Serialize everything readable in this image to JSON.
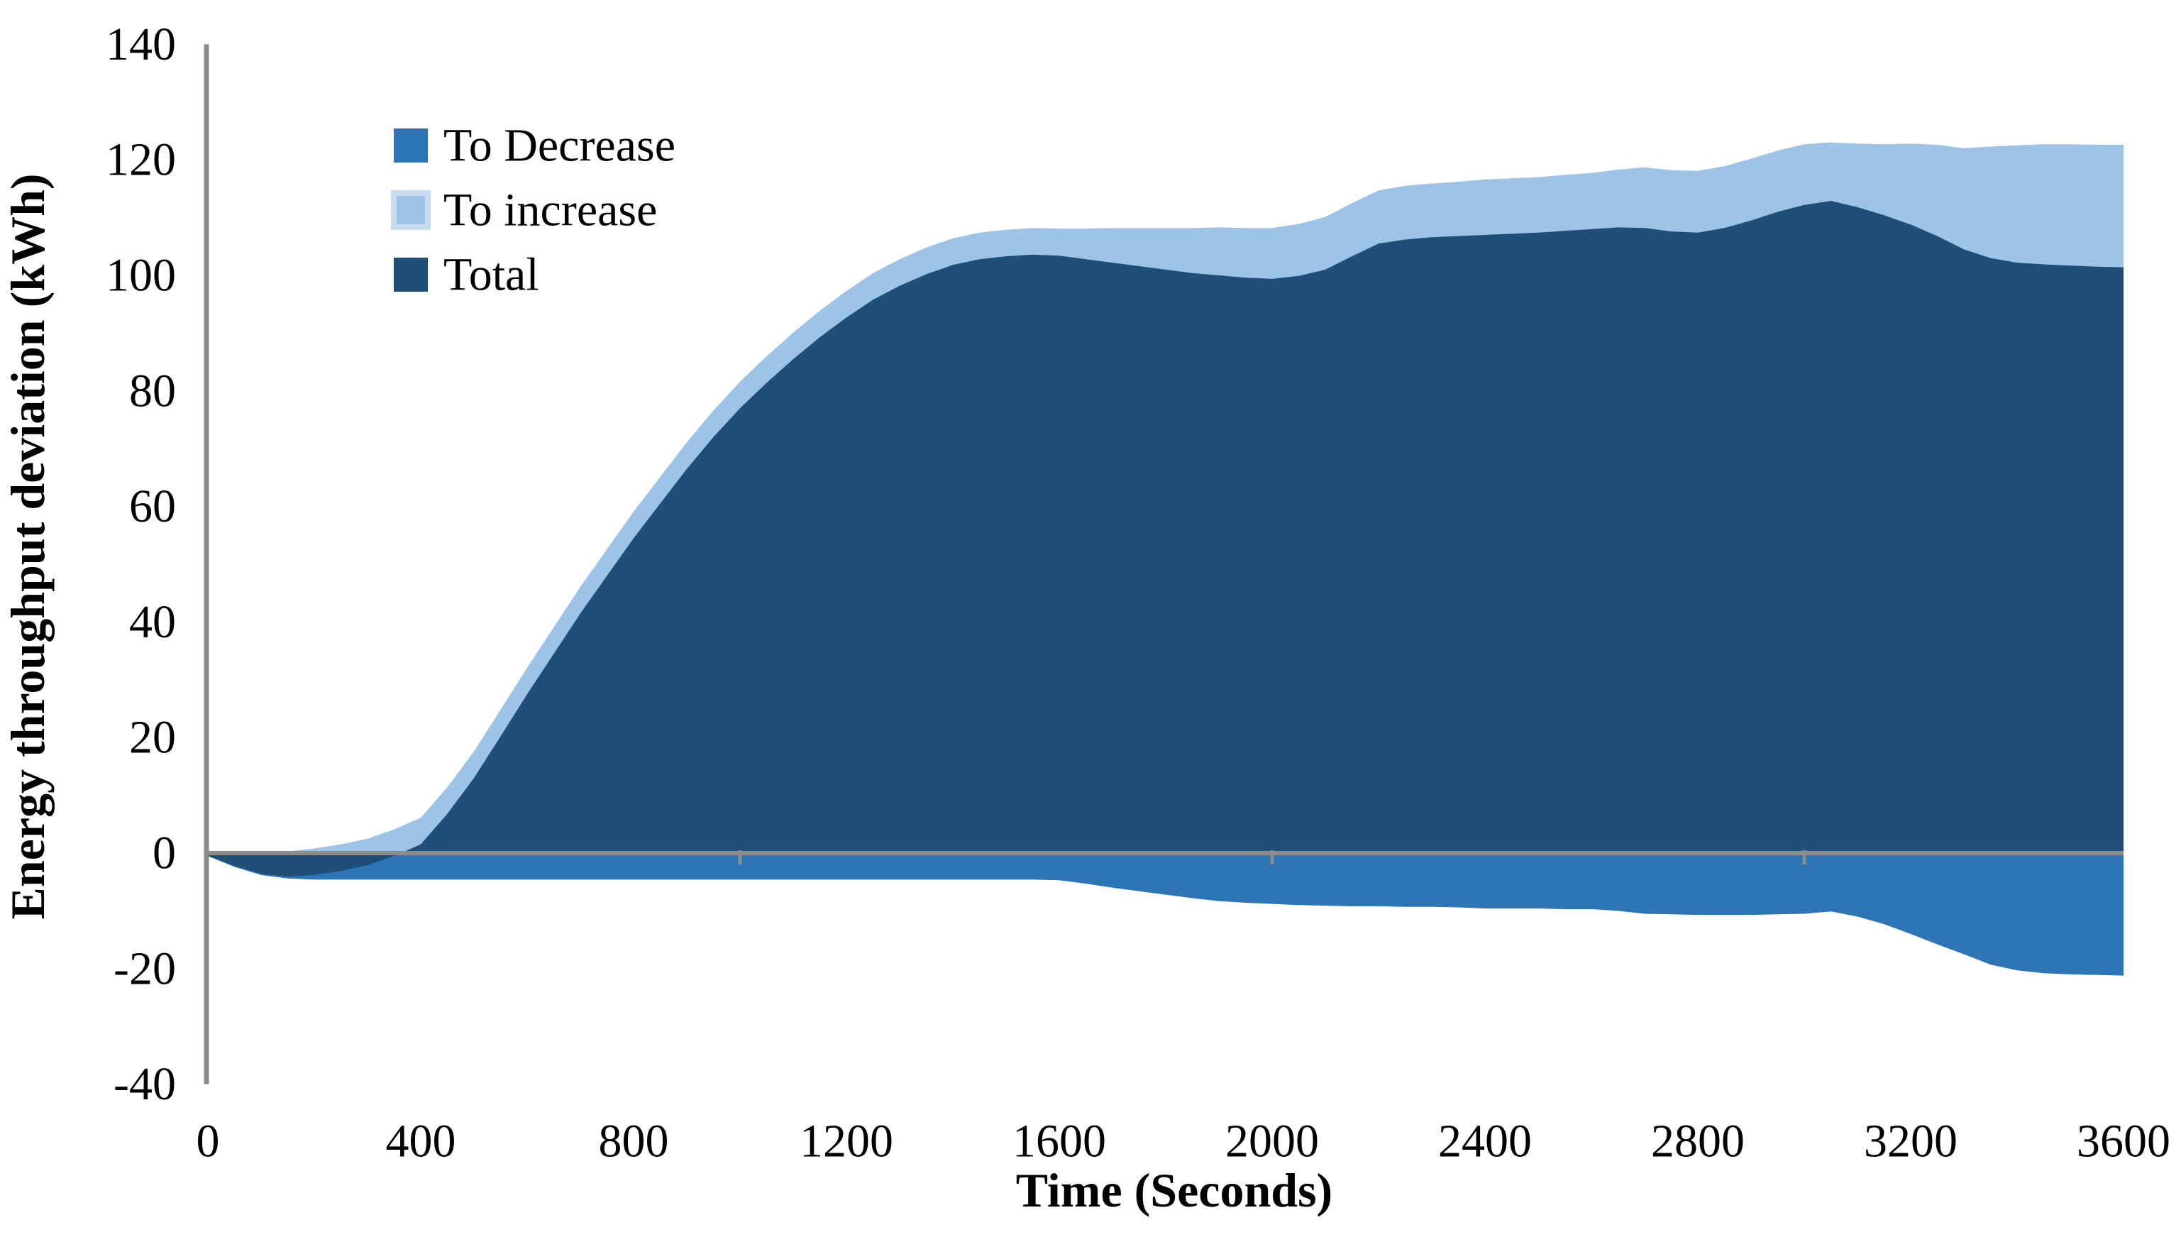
{
  "page": {
    "background": "#ffffff"
  },
  "legend": {
    "position": "top-left-inside",
    "items": [
      {
        "label": "To Decrease",
        "color": "#2E75B6"
      },
      {
        "label": "To increase",
        "color": "#9DC3E6"
      },
      {
        "label": "Total",
        "color": "#1F4E79"
      }
    ]
  },
  "chart_data": {
    "type": "area",
    "title": "",
    "xlabel": "Time (Seconds)",
    "ylabel": "Energy throughput deviation (kWh)",
    "xlim": [
      0,
      3600
    ],
    "ylim": [
      -40,
      140
    ],
    "x_ticks": [
      0,
      400,
      800,
      1200,
      1600,
      2000,
      2400,
      2800,
      3200,
      3600
    ],
    "x_minor_ticks": [
      1000,
      2000,
      3000
    ],
    "y_ticks": [
      140,
      120,
      100,
      80,
      60,
      40,
      20,
      0,
      -20,
      -40
    ],
    "grid": false,
    "legend_position": "top-left-inside",
    "axis_color": "#8C8C8C",
    "text_color": "#000000",
    "x_step_seconds": 50,
    "x": [
      0,
      50,
      100,
      150,
      200,
      250,
      300,
      350,
      400,
      450,
      500,
      550,
      600,
      650,
      700,
      750,
      800,
      850,
      900,
      950,
      1000,
      1050,
      1100,
      1150,
      1200,
      1250,
      1300,
      1350,
      1400,
      1450,
      1500,
      1550,
      1600,
      1650,
      1700,
      1750,
      1800,
      1850,
      1900,
      1950,
      2000,
      2050,
      2100,
      2150,
      2200,
      2250,
      2300,
      2350,
      2400,
      2450,
      2500,
      2550,
      2600,
      2650,
      2700,
      2750,
      2800,
      2850,
      2900,
      2950,
      3000,
      3050,
      3100,
      3150,
      3200,
      3250,
      3300,
      3350,
      3400,
      3450,
      3500,
      3550,
      3600
    ],
    "series": [
      {
        "name": "To Decrease",
        "color": "#2E75B6",
        "values": [
          -0.5,
          -2.4,
          -3.8,
          -4.4,
          -4.6,
          -4.6,
          -4.6,
          -4.6,
          -4.6,
          -4.6,
          -4.6,
          -4.6,
          -4.6,
          -4.6,
          -4.6,
          -4.6,
          -4.6,
          -4.6,
          -4.6,
          -4.6,
          -4.6,
          -4.6,
          -4.6,
          -4.6,
          -4.6,
          -4.6,
          -4.6,
          -4.6,
          -4.6,
          -4.6,
          -4.6,
          -4.6,
          -4.7,
          -5.3,
          -6.0,
          -6.6,
          -7.2,
          -7.8,
          -8.3,
          -8.6,
          -8.8,
          -9.0,
          -9.1,
          -9.2,
          -9.2,
          -9.3,
          -9.3,
          -9.4,
          -9.6,
          -9.6,
          -9.6,
          -9.7,
          -9.7,
          -10.0,
          -10.5,
          -10.6,
          -10.7,
          -10.7,
          -10.7,
          -10.6,
          -10.5,
          -10.1,
          -11.0,
          -12.3,
          -14.0,
          -15.8,
          -17.5,
          -19.3,
          -20.3,
          -20.8,
          -21.0,
          -21.1,
          -21.2
        ]
      },
      {
        "name": "To increase",
        "color": "#9DC3E6",
        "values": [
          0.0,
          0.2,
          0.2,
          0.3,
          0.8,
          1.5,
          2.5,
          4.1,
          6.1,
          11.4,
          17.6,
          24.8,
          32.1,
          39.1,
          46.1,
          52.6,
          59.1,
          65.1,
          71.1,
          76.6,
          81.6,
          86.0,
          90.1,
          93.9,
          97.3,
          100.4,
          102.8,
          104.8,
          106.4,
          107.4,
          107.9,
          108.2,
          108.1,
          108.1,
          108.2,
          108.2,
          108.2,
          108.2,
          108.3,
          108.2,
          108.2,
          108.9,
          110.1,
          112.5,
          114.7,
          115.5,
          115.9,
          116.2,
          116.6,
          116.8,
          117.0,
          117.4,
          117.7,
          118.3,
          118.7,
          118.2,
          118.1,
          118.9,
          120.2,
          121.6,
          122.7,
          123.0,
          122.8,
          122.7,
          122.8,
          122.6,
          122.0,
          122.3,
          122.5,
          122.7,
          122.7,
          122.6,
          122.6
        ]
      },
      {
        "name": "Total",
        "color": "#1F4E79",
        "values": [
          -0.5,
          -2.2,
          -3.6,
          -4.1,
          -3.8,
          -3.1,
          -2.1,
          -0.5,
          1.5,
          6.8,
          13.0,
          20.2,
          27.5,
          34.5,
          41.5,
          48.0,
          54.5,
          60.5,
          66.5,
          72.0,
          77.0,
          81.4,
          85.5,
          89.3,
          92.7,
          95.8,
          98.2,
          100.2,
          101.8,
          102.8,
          103.3,
          103.6,
          103.4,
          102.8,
          102.2,
          101.6,
          101.0,
          100.4,
          100.0,
          99.6,
          99.4,
          99.9,
          101.0,
          103.3,
          105.5,
          106.2,
          106.6,
          106.8,
          107.0,
          107.2,
          107.4,
          107.7,
          108.0,
          108.3,
          108.2,
          107.6,
          107.4,
          108.2,
          109.5,
          111.0,
          112.2,
          112.9,
          111.8,
          110.4,
          108.8,
          106.8,
          104.5,
          103.0,
          102.2,
          101.9,
          101.7,
          101.5,
          101.4
        ]
      }
    ]
  }
}
